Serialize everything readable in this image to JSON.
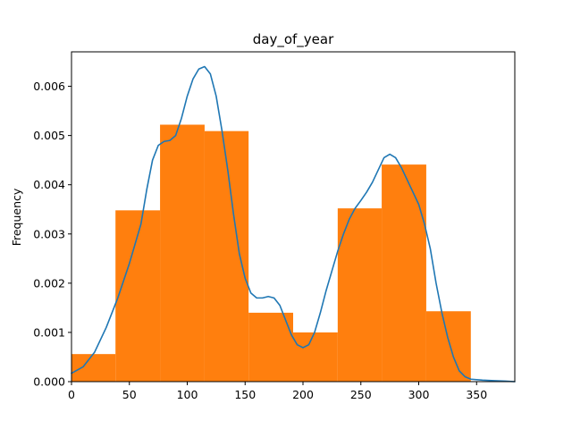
{
  "chart_data": {
    "type": "bar",
    "title": "day_of_year",
    "xlabel": "",
    "ylabel": "Frequency",
    "xlim": [
      0,
      383
    ],
    "ylim": [
      0,
      0.0067
    ],
    "grid": false,
    "x_ticks": [
      0,
      50,
      100,
      150,
      200,
      250,
      300,
      350
    ],
    "x_tick_labels": [
      "0",
      "50",
      "100",
      "150",
      "200",
      "250",
      "300",
      "350"
    ],
    "y_ticks": [
      0,
      0.001,
      0.002,
      0.003,
      0.004,
      0.005,
      0.006
    ],
    "y_tick_labels": [
      "0.000",
      "0.001",
      "0.002",
      "0.003",
      "0.004",
      "0.005",
      "0.006"
    ],
    "histogram": {
      "color": "#ff7f0e",
      "bins": [
        {
          "x0": 0,
          "x1": 38,
          "value": 0.00056
        },
        {
          "x0": 38,
          "x1": 76.5,
          "value": 0.00348
        },
        {
          "x0": 76.5,
          "x1": 115,
          "value": 0.00522
        },
        {
          "x0": 115,
          "x1": 153,
          "value": 0.00509
        },
        {
          "x0": 153,
          "x1": 191.5,
          "value": 0.0014
        },
        {
          "x0": 191.5,
          "x1": 230,
          "value": 0.001
        },
        {
          "x0": 230,
          "x1": 268,
          "value": 0.00352
        },
        {
          "x0": 268,
          "x1": 306.5,
          "value": 0.00441
        },
        {
          "x0": 306.5,
          "x1": 345,
          "value": 0.00143
        }
      ]
    },
    "density_line": {
      "color": "#1f77b4",
      "points": [
        [
          0,
          0.00017
        ],
        [
          10,
          0.0003
        ],
        [
          20,
          0.0006
        ],
        [
          30,
          0.0011
        ],
        [
          40,
          0.0017
        ],
        [
          50,
          0.0024
        ],
        [
          60,
          0.0032
        ],
        [
          65,
          0.0039
        ],
        [
          70,
          0.0045
        ],
        [
          75,
          0.0048
        ],
        [
          80,
          0.00488
        ],
        [
          85,
          0.0049
        ],
        [
          90,
          0.005
        ],
        [
          95,
          0.00535
        ],
        [
          100,
          0.0058
        ],
        [
          105,
          0.00615
        ],
        [
          110,
          0.00635
        ],
        [
          115,
          0.0064
        ],
        [
          120,
          0.00625
        ],
        [
          125,
          0.0058
        ],
        [
          130,
          0.0051
        ],
        [
          135,
          0.0043
        ],
        [
          140,
          0.0034
        ],
        [
          145,
          0.0026
        ],
        [
          150,
          0.0021
        ],
        [
          155,
          0.0018
        ],
        [
          160,
          0.0017
        ],
        [
          165,
          0.0017
        ],
        [
          170,
          0.00173
        ],
        [
          175,
          0.0017
        ],
        [
          180,
          0.00155
        ],
        [
          185,
          0.00125
        ],
        [
          190,
          0.00095
        ],
        [
          195,
          0.00075
        ],
        [
          200,
          0.00069
        ],
        [
          205,
          0.00075
        ],
        [
          210,
          0.001
        ],
        [
          215,
          0.0014
        ],
        [
          220,
          0.00185
        ],
        [
          225,
          0.00225
        ],
        [
          230,
          0.00265
        ],
        [
          235,
          0.003
        ],
        [
          240,
          0.0033
        ],
        [
          245,
          0.00352
        ],
        [
          250,
          0.00368
        ],
        [
          255,
          0.00385
        ],
        [
          260,
          0.00405
        ],
        [
          265,
          0.0043
        ],
        [
          270,
          0.00455
        ],
        [
          275,
          0.00462
        ],
        [
          280,
          0.00455
        ],
        [
          285,
          0.00435
        ],
        [
          290,
          0.0041
        ],
        [
          295,
          0.00385
        ],
        [
          300,
          0.0036
        ],
        [
          305,
          0.0032
        ],
        [
          310,
          0.0027
        ],
        [
          315,
          0.002
        ],
        [
          320,
          0.0014
        ],
        [
          325,
          0.0009
        ],
        [
          330,
          0.0005
        ],
        [
          335,
          0.00022
        ],
        [
          340,
          0.0001
        ],
        [
          345,
          5e-05
        ],
        [
          355,
          3e-05
        ],
        [
          365,
          2e-05
        ],
        [
          375,
          1e-05
        ],
        [
          383,
          0.0
        ]
      ]
    }
  }
}
